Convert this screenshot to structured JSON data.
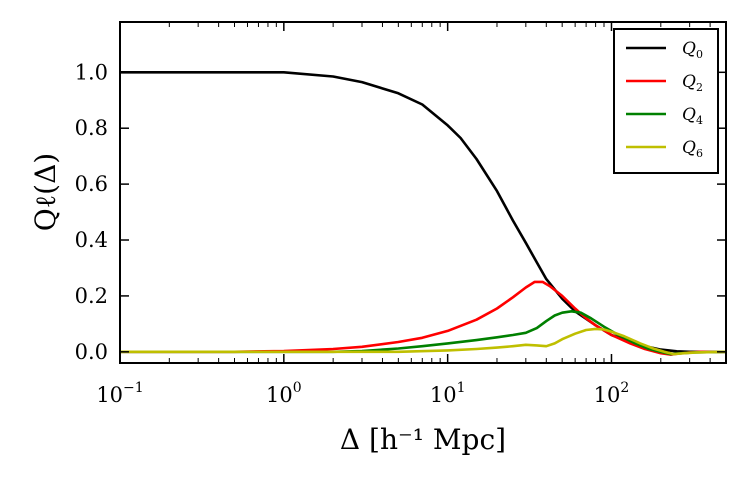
{
  "chart_data": {
    "type": "line",
    "title": "",
    "xlabel": "Δ [h⁻¹ Mpc]",
    "ylabel": "Qℓ(Δ)",
    "xscale": "log",
    "xlim": [
      0.1,
      500
    ],
    "ylim": [
      -0.04,
      1.18
    ],
    "xticks": [
      {
        "value": 0.1,
        "base": "10",
        "exp": "−1"
      },
      {
        "value": 1,
        "base": "10",
        "exp": "0"
      },
      {
        "value": 10,
        "base": "10",
        "exp": "1"
      },
      {
        "value": 100,
        "base": "10",
        "exp": "2"
      }
    ],
    "yticks": [
      {
        "value": 0.0,
        "label": "0.0"
      },
      {
        "value": 0.2,
        "label": "0.2"
      },
      {
        "value": 0.4,
        "label": "0.4"
      },
      {
        "value": 0.6,
        "label": "0.6"
      },
      {
        "value": 0.8,
        "label": "0.8"
      },
      {
        "value": 1.0,
        "label": "1.0"
      }
    ],
    "legend_position": "top-right",
    "series": [
      {
        "name": "Q0",
        "base": "Q",
        "sub": "0",
        "color": "#000000",
        "points": [
          [
            0.1,
            1.0
          ],
          [
            1.0,
            1.0
          ],
          [
            2,
            0.985
          ],
          [
            3,
            0.965
          ],
          [
            5,
            0.925
          ],
          [
            7,
            0.885
          ],
          [
            10,
            0.81
          ],
          [
            12,
            0.765
          ],
          [
            15,
            0.69
          ],
          [
            20,
            0.575
          ],
          [
            25,
            0.47
          ],
          [
            30,
            0.39
          ],
          [
            35,
            0.32
          ],
          [
            40,
            0.26
          ],
          [
            50,
            0.19
          ],
          [
            60,
            0.145
          ],
          [
            80,
            0.095
          ],
          [
            100,
            0.06
          ],
          [
            130,
            0.035
          ],
          [
            160,
            0.02
          ],
          [
            200,
            0.008
          ],
          [
            250,
            0.002
          ],
          [
            300,
            0.0
          ],
          [
            500,
            0.0
          ]
        ]
      },
      {
        "name": "Q2",
        "base": "Q",
        "sub": "2",
        "color": "#ff0000",
        "points": [
          [
            0.1,
            0.0
          ],
          [
            0.5,
            0.0
          ],
          [
            1,
            0.003
          ],
          [
            2,
            0.01
          ],
          [
            3,
            0.018
          ],
          [
            5,
            0.035
          ],
          [
            7,
            0.05
          ],
          [
            10,
            0.075
          ],
          [
            15,
            0.115
          ],
          [
            20,
            0.155
          ],
          [
            25,
            0.195
          ],
          [
            30,
            0.23
          ],
          [
            34,
            0.25
          ],
          [
            38,
            0.25
          ],
          [
            42,
            0.235
          ],
          [
            50,
            0.2
          ],
          [
            60,
            0.155
          ],
          [
            70,
            0.12
          ],
          [
            80,
            0.095
          ],
          [
            100,
            0.06
          ],
          [
            130,
            0.03
          ],
          [
            160,
            0.01
          ],
          [
            200,
            -0.005
          ],
          [
            230,
            -0.01
          ],
          [
            260,
            -0.006
          ],
          [
            300,
            -0.002
          ],
          [
            350,
            0.0
          ],
          [
            500,
            0.0
          ]
        ]
      },
      {
        "name": "Q4",
        "base": "Q",
        "sub": "4",
        "color": "#008000",
        "points": [
          [
            0.1,
            0.0
          ],
          [
            2,
            0.0
          ],
          [
            3,
            0.003
          ],
          [
            5,
            0.012
          ],
          [
            7,
            0.02
          ],
          [
            10,
            0.03
          ],
          [
            15,
            0.042
          ],
          [
            20,
            0.052
          ],
          [
            25,
            0.06
          ],
          [
            30,
            0.068
          ],
          [
            35,
            0.085
          ],
          [
            40,
            0.11
          ],
          [
            45,
            0.13
          ],
          [
            50,
            0.14
          ],
          [
            57,
            0.145
          ],
          [
            65,
            0.14
          ],
          [
            75,
            0.12
          ],
          [
            90,
            0.09
          ],
          [
            110,
            0.06
          ],
          [
            140,
            0.03
          ],
          [
            170,
            0.01
          ],
          [
            200,
            0.0
          ],
          [
            230,
            -0.008
          ],
          [
            270,
            -0.005
          ],
          [
            320,
            -0.002
          ],
          [
            500,
            0.0
          ]
        ]
      },
      {
        "name": "Q6",
        "base": "Q",
        "sub": "6",
        "color": "#bfbf00",
        "points": [
          [
            0.1,
            0.0
          ],
          [
            5,
            0.0
          ],
          [
            10,
            0.005
          ],
          [
            15,
            0.01
          ],
          [
            20,
            0.015
          ],
          [
            25,
            0.02
          ],
          [
            30,
            0.025
          ],
          [
            35,
            0.023
          ],
          [
            40,
            0.02
          ],
          [
            45,
            0.03
          ],
          [
            50,
            0.045
          ],
          [
            60,
            0.065
          ],
          [
            70,
            0.078
          ],
          [
            80,
            0.082
          ],
          [
            90,
            0.08
          ],
          [
            100,
            0.072
          ],
          [
            120,
            0.055
          ],
          [
            150,
            0.03
          ],
          [
            180,
            0.012
          ],
          [
            210,
            0.0
          ],
          [
            240,
            -0.008
          ],
          [
            280,
            -0.005
          ],
          [
            330,
            -0.002
          ],
          [
            500,
            0.0
          ]
        ]
      }
    ]
  }
}
